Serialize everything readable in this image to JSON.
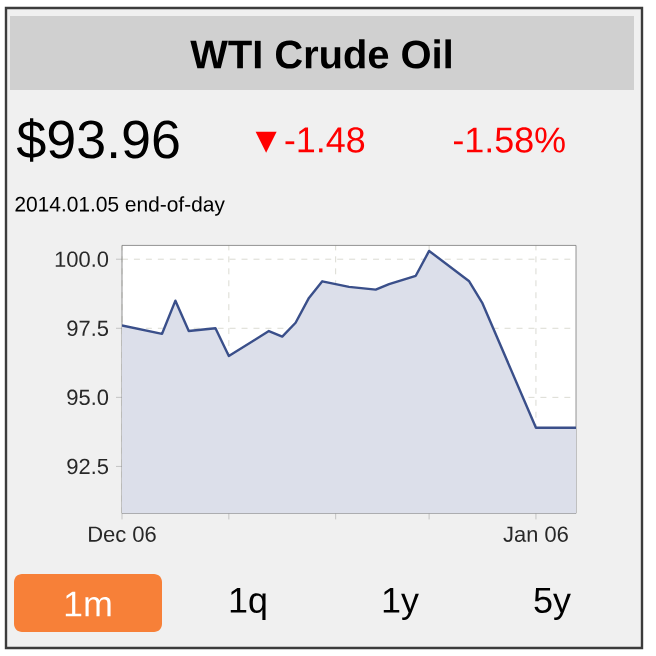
{
  "chart_data": {
    "type": "area",
    "title": "WTI Crude Oil",
    "annotations": [
      "$93.96",
      "▼-1.48",
      "-1.58%",
      "2014.01.05 end-of-day",
      "1m",
      "1q",
      "1y",
      "5y"
    ],
    "x": [
      "2013-12-06",
      "2013-12-09",
      "2013-12-10",
      "2013-12-11",
      "2013-12-13",
      "2013-12-14",
      "2013-12-17",
      "2013-12-18",
      "2013-12-19",
      "2013-12-20",
      "2013-12-21",
      "2013-12-23",
      "2013-12-25",
      "2013-12-26",
      "2013-12-28",
      "2013-12-29",
      "2014-01-01",
      "2014-01-02",
      "2014-01-06",
      "2014-01-09"
    ],
    "series": [
      {
        "color": "#3a4f8a",
        "values": [
          97.6,
          97.3,
          98.5,
          97.4,
          97.5,
          96.5,
          97.4,
          97.2,
          97.7,
          98.6,
          99.2,
          99.0,
          98.9,
          99.1,
          99.4,
          100.3,
          99.2,
          98.4,
          93.9,
          93.9
        ]
      }
    ],
    "xlim": [
      "2013-12-06",
      "2014-01-09"
    ],
    "xticks": [
      {
        "value": "2013-12-06",
        "label": "Dec 06"
      },
      {
        "value": "2013-12-14",
        "label": null
      },
      {
        "value": "2013-12-22",
        "label": null
      },
      {
        "value": "2013-12-29",
        "label": null
      },
      {
        "value": "2014-01-06",
        "label": "Jan 06"
      }
    ],
    "ylim": [
      90.8,
      100.5
    ],
    "yticks": [
      {
        "value": 92.5,
        "label": "92.5"
      },
      {
        "value": 95,
        "label": "95.0"
      },
      {
        "value": 97.5,
        "label": "97.5"
      },
      {
        "value": 100,
        "label": "100.0"
      }
    ],
    "grid": true
  }
}
